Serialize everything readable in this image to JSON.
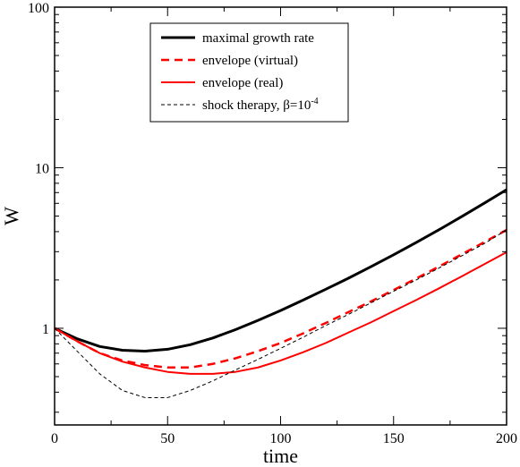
{
  "chart_data": {
    "type": "line",
    "xlabel": "time",
    "ylabel": "W",
    "xlim": [
      0,
      200
    ],
    "ylim": [
      0.25,
      100
    ],
    "yscale": "log",
    "grid": false,
    "legend_position": "top-center",
    "xticks": [
      0,
      50,
      100,
      150,
      200
    ],
    "xtick_labels": [
      "0",
      "50",
      "100",
      "150",
      "200"
    ],
    "yticks": [
      1,
      10,
      100
    ],
    "ytick_labels": [
      "1",
      "10",
      "100"
    ],
    "series": [
      {
        "name": "maximal growth rate",
        "color": "#000000",
        "style": "solid-thick",
        "x": [
          0,
          10,
          20,
          30,
          40,
          50,
          60,
          70,
          80,
          90,
          100,
          110,
          120,
          130,
          140,
          150,
          160,
          170,
          180,
          190,
          200
        ],
        "y": [
          1.0,
          0.86,
          0.77,
          0.73,
          0.72,
          0.74,
          0.79,
          0.87,
          0.98,
          1.12,
          1.29,
          1.5,
          1.75,
          2.05,
          2.42,
          2.87,
          3.42,
          4.1,
          4.95,
          6.0,
          7.3
        ]
      },
      {
        "name": "envelope (virtual)",
        "color": "#ff0000",
        "style": "dashed",
        "x": [
          0,
          10,
          20,
          30,
          40,
          50,
          60,
          70,
          80,
          90,
          100,
          110,
          120,
          130,
          140,
          150,
          160,
          170,
          180,
          190,
          200
        ],
        "y": [
          1.0,
          0.83,
          0.7,
          0.63,
          0.59,
          0.57,
          0.57,
          0.6,
          0.65,
          0.72,
          0.81,
          0.93,
          1.08,
          1.26,
          1.47,
          1.73,
          2.04,
          2.42,
          2.88,
          3.43,
          4.1
        ]
      },
      {
        "name": "envelope (real)",
        "color": "#ff0000",
        "style": "solid",
        "x": [
          0,
          10,
          20,
          30,
          40,
          50,
          60,
          70,
          80,
          90,
          100,
          110,
          120,
          130,
          140,
          150,
          160,
          170,
          180,
          190,
          200
        ],
        "y": [
          1.0,
          0.83,
          0.7,
          0.62,
          0.57,
          0.535,
          0.52,
          0.52,
          0.535,
          0.57,
          0.63,
          0.71,
          0.81,
          0.94,
          1.09,
          1.28,
          1.5,
          1.77,
          2.1,
          2.5,
          2.98
        ]
      },
      {
        "name": "shock therapy, β=10",
        "name_superscript": "-4",
        "color": "#000000",
        "style": "dashed-thin",
        "x": [
          0,
          10,
          20,
          30,
          40,
          50,
          60,
          70,
          80,
          90,
          100,
          110,
          120,
          130,
          140,
          150,
          160,
          170,
          180,
          190,
          200
        ],
        "y": [
          1.0,
          0.72,
          0.52,
          0.41,
          0.37,
          0.37,
          0.41,
          0.47,
          0.55,
          0.64,
          0.75,
          0.88,
          1.04,
          1.22,
          1.44,
          1.7,
          2.0,
          2.37,
          2.82,
          3.36,
          4.1
        ]
      }
    ]
  }
}
